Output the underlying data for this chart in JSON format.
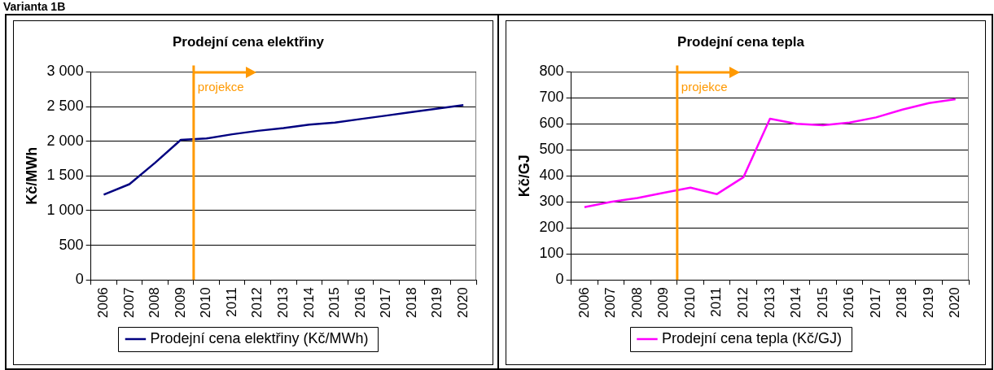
{
  "chart_data": [
    {
      "type": "line",
      "title": "Prodejní cena elektřiny",
      "ylabel": "Kč/MWh",
      "annotations": [
        "Varianta 1B"
      ],
      "categories": [
        "2006",
        "2007",
        "2008",
        "2009",
        "2010",
        "2011",
        "2012",
        "2013",
        "2014",
        "2015",
        "2016",
        "2017",
        "2018",
        "2019",
        "2020"
      ],
      "series": [
        {
          "name": "Prodejní cena elektřiny (Kč/MWh)",
          "color": "#000080",
          "values": [
            1230,
            1380,
            1690,
            2020,
            2040,
            2100,
            2150,
            2190,
            2240,
            2270,
            2320,
            2370,
            2420,
            2470,
            2520
          ]
        }
      ],
      "ylim": [
        0,
        3000
      ],
      "yticks": [
        {
          "value": 0,
          "label": "0"
        },
        {
          "value": 500,
          "label": "500"
        },
        {
          "value": 1000,
          "label": "1 000"
        },
        {
          "value": 1500,
          "label": "1 500"
        },
        {
          "value": 2000,
          "label": "2 000"
        },
        {
          "value": 2500,
          "label": "2 500"
        },
        {
          "value": 3000,
          "label": "3 000"
        }
      ],
      "ref_lines": [
        {
          "axis": "x",
          "value": "2010",
          "label": "projekce",
          "color": "#ff9900"
        }
      ],
      "grid": "y",
      "legend": "bottom",
      "marker": "none",
      "line_style": "solid"
    },
    {
      "type": "line",
      "title": "Prodejní cena tepla",
      "ylabel": "Kč/GJ",
      "categories": [
        "2006",
        "2007",
        "2008",
        "2009",
        "2010",
        "2011",
        "2012",
        "2013",
        "2014",
        "2015",
        "2016",
        "2017",
        "2018",
        "2019",
        "2020"
      ],
      "series": [
        {
          "name": "Prodejní cena tepla (Kč/GJ)",
          "color": "#ff00ff",
          "values": [
            280,
            300,
            315,
            335,
            355,
            330,
            395,
            620,
            600,
            595,
            605,
            625,
            655,
            680,
            695
          ]
        }
      ],
      "ylim": [
        0,
        800
      ],
      "yticks": [
        0,
        100,
        200,
        300,
        400,
        500,
        600,
        700,
        800
      ],
      "ref_lines": [
        {
          "axis": "x",
          "value": "2010",
          "label": "projekce",
          "color": "#ff9900"
        }
      ],
      "grid": "y",
      "legend": "bottom",
      "marker": "none",
      "line_style": "solid"
    }
  ]
}
